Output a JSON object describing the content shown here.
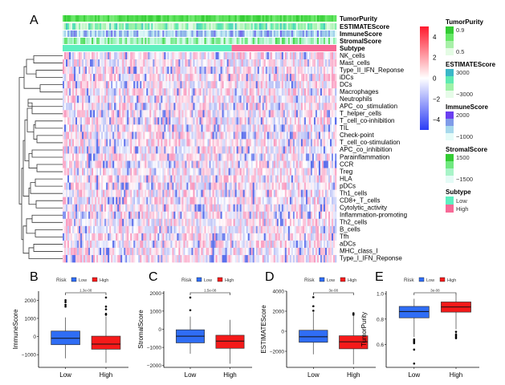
{
  "chart_data": [
    {
      "panel": "A",
      "type": "heatmap",
      "title": "",
      "annotation_rows": [
        "TumorPurity",
        "ESTIMATEScore",
        "ImmuneScore",
        "StromalScore",
        "Subtype"
      ],
      "rows": [
        "NK_cells",
        "Mast_cells",
        "Type_II_IFN_Reponse",
        "iDCs",
        "DCs",
        "Macrophages",
        "Neutrophils",
        "APC_co_stimulation",
        "T_helper_cells",
        "T_cell_co-inhibition",
        "TIL",
        "Check-point",
        "T_cell_co-stimulation",
        "APC_co_inhibition",
        "Parainflammation",
        "CCR",
        "Treg",
        "HLA",
        "pDCs",
        "Th1_cells",
        "CD8+_T_cells",
        "Cytolytic_activity",
        "Inflammation-promoting",
        "Th2_cells",
        "B_cells",
        "Tfh",
        "aDCs",
        "MHC_class_I",
        "Type_I_IFN_Reponse"
      ],
      "subtype_split": {
        "low_fraction": 0.62,
        "high_fraction": 0.38
      },
      "color_scale": {
        "ticks": [
          4,
          2,
          0,
          -2,
          -4
        ],
        "min": -5,
        "max": 5,
        "low_color": "#2b3cf5",
        "mid_color": "#ffffff",
        "high_color": "#ff1a2e"
      },
      "legends": [
        {
          "title": "TumorPurity",
          "labels": [
            "0.9",
            "0.5"
          ],
          "colors": [
            "#33cc33",
            "#66e866",
            "#a8f0a8",
            "#e4fbe4"
          ]
        },
        {
          "title": "ESTIMATEScore",
          "labels": [
            "3000",
            "-3000"
          ],
          "colors": [
            "#3ab7c8",
            "#5eeab2",
            "#9ff2a8",
            "#e6fbe8"
          ]
        },
        {
          "title": "ImmuneScore",
          "labels": [
            "2000",
            "-1000"
          ],
          "colors": [
            "#6a3ff0",
            "#7f9be8",
            "#a6d8ec",
            "#e4fbf8"
          ]
        },
        {
          "title": "StromalScore",
          "labels": [
            "1500",
            "-1500"
          ],
          "colors": [
            "#33cc33",
            "#70e880",
            "#a8f4c8",
            "#e4fbf6"
          ]
        },
        {
          "title": "Subtype",
          "labels": [
            "Low",
            "High"
          ],
          "colors": [
            "#5ef0c0",
            "#f76a97"
          ]
        }
      ]
    },
    {
      "panel": "B",
      "type": "box",
      "ylabel": "ImmuneScore",
      "categories": [
        "Low",
        "High"
      ],
      "legend_title": "Risk",
      "legend": [
        "Low",
        "High"
      ],
      "colors": [
        "#2f6df5",
        "#f51a1a"
      ],
      "pvalue": "1.3e-08",
      "yticks": [
        2000,
        1000,
        0,
        -1000
      ],
      "ylim": [
        -1700,
        2500
      ],
      "boxes": [
        {
          "min": -1200,
          "q1": -450,
          "median": -100,
          "q3": 300,
          "max": 1050,
          "outliers": [
            1650,
            1750,
            1900,
            2000
          ]
        },
        {
          "min": -1450,
          "q1": -700,
          "median": -420,
          "q3": 20,
          "max": 1100,
          "outliers": [
            1200,
            1250,
            1500,
            1650,
            2150
          ]
        }
      ]
    },
    {
      "panel": "C",
      "type": "box",
      "ylabel": "StromalScore",
      "categories": [
        "Low",
        "High"
      ],
      "legend_title": "Risk",
      "legend": [
        "Low",
        "High"
      ],
      "colors": [
        "#2f6df5",
        "#f51a1a"
      ],
      "pvalue": "1.5e-08",
      "yticks": [
        2000,
        1000,
        0,
        -1000,
        -2000
      ],
      "ylim": [
        -2100,
        2100
      ],
      "boxes": [
        {
          "min": -1350,
          "q1": -750,
          "median": -380,
          "q3": -30,
          "max": 700,
          "outliers": [
            1050,
            1750
          ]
        },
        {
          "min": -1900,
          "q1": -1050,
          "median": -650,
          "q3": -330,
          "max": 520,
          "outliers": []
        }
      ]
    },
    {
      "panel": "D",
      "type": "box",
      "ylabel": "ESTIMATEScore",
      "categories": [
        "Low",
        "High"
      ],
      "legend_title": "Risk",
      "legend": [
        "Low",
        "High"
      ],
      "colors": [
        "#2f6df5",
        "#f51a1a"
      ],
      "pvalue": "3e-08",
      "yticks": [
        4000,
        2000,
        0,
        -2000
      ],
      "ylim": [
        -3600,
        4000
      ],
      "boxes": [
        {
          "min": -2300,
          "q1": -1100,
          "median": -550,
          "q3": 100,
          "max": 1900,
          "outliers": [
            2050,
            2500,
            3400
          ]
        },
        {
          "min": -3300,
          "q1": -1750,
          "median": -1050,
          "q3": -450,
          "max": 1550,
          "outliers": [
            1650,
            1750,
            1800
          ]
        }
      ]
    },
    {
      "panel": "E",
      "type": "box",
      "ylabel": "TumorPurity",
      "categories": [
        "Low",
        "High"
      ],
      "legend_title": "Risk",
      "legend": [
        "Low",
        "High"
      ],
      "colors": [
        "#2f6df5",
        "#f51a1a"
      ],
      "pvalue": "3e-08",
      "yticks": [
        1.0,
        0.8,
        0.6
      ],
      "ylim": [
        0.42,
        1.02
      ],
      "boxes": [
        {
          "min": 0.66,
          "q1": 0.81,
          "median": 0.86,
          "q3": 0.9,
          "max": 0.96,
          "outliers": [
            0.64,
            0.63,
            0.62,
            0.61,
            0.56,
            0.45
          ]
        },
        {
          "min": 0.72,
          "q1": 0.855,
          "median": 0.895,
          "q3": 0.935,
          "max": 0.99,
          "outliers": [
            0.7,
            0.68,
            0.67,
            0.66,
            0.65
          ]
        }
      ]
    }
  ]
}
